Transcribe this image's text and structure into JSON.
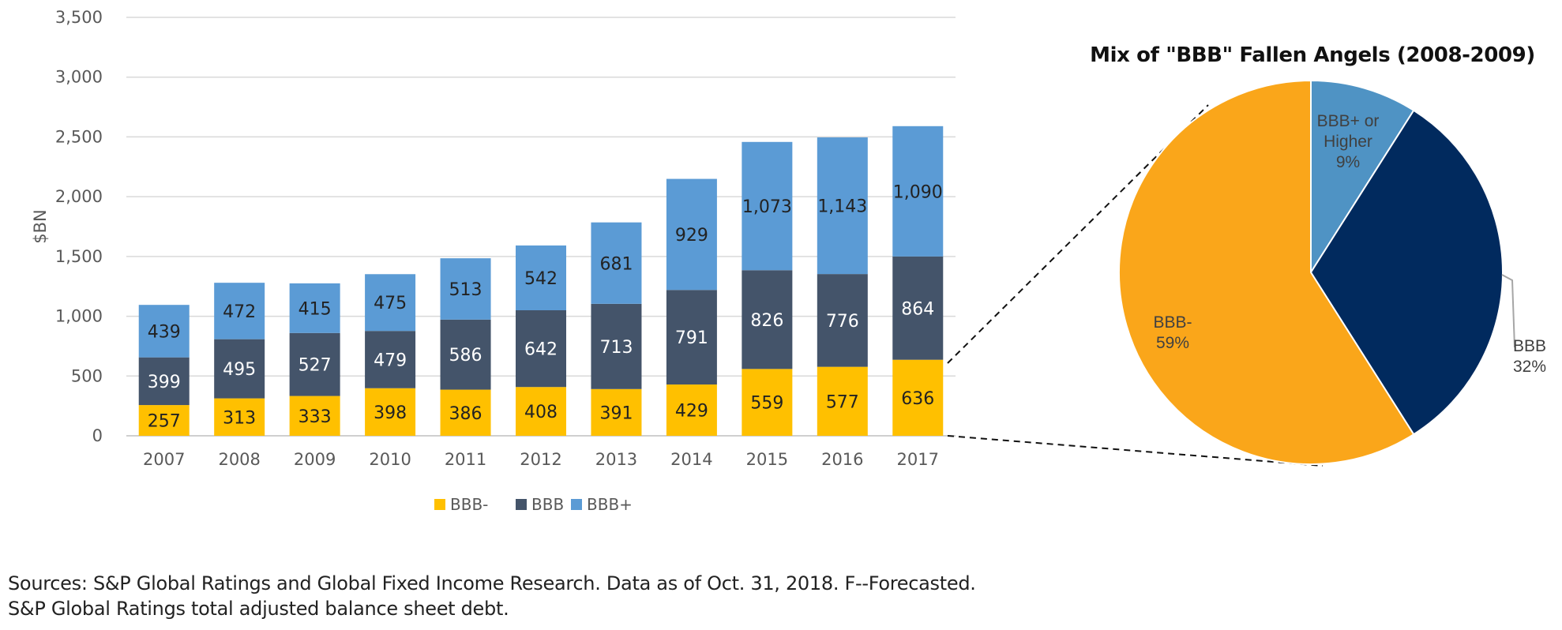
{
  "chart_data": [
    {
      "type": "bar",
      "stacked": true,
      "title": "",
      "xlabel": "",
      "ylabel": "$BN",
      "ylim": [
        0,
        3500
      ],
      "yticks": [
        "0",
        "500",
        "1,000",
        "1,500",
        "2,000",
        "2,500",
        "3,000",
        "3,500"
      ],
      "grid": true,
      "legend_position": "bottom",
      "categories": [
        "2007",
        "2008",
        "2009",
        "2010",
        "2011",
        "2012",
        "2013",
        "2014",
        "2015",
        "2016",
        "2017"
      ],
      "series": [
        {
          "name": "BBB-",
          "color": "#FFC000",
          "values": [
            257,
            313,
            333,
            398,
            386,
            408,
            391,
            429,
            559,
            577,
            636
          ],
          "labels": [
            "257",
            "313",
            "333",
            "398",
            "386",
            "408",
            "391",
            "429",
            "559",
            "577",
            "636"
          ],
          "label_color": "#222222"
        },
        {
          "name": "BBB",
          "color": "#44546A",
          "values": [
            399,
            495,
            527,
            479,
            586,
            642,
            713,
            791,
            826,
            776,
            864
          ],
          "labels": [
            "399",
            "495",
            "527",
            "479",
            "586",
            "642",
            "713",
            "791",
            "826",
            "776",
            "864"
          ],
          "label_color": "#ffffff"
        },
        {
          "name": "BBB+",
          "color": "#5B9BD5",
          "values": [
            439,
            472,
            415,
            475,
            513,
            542,
            681,
            929,
            1073,
            1143,
            1090
          ],
          "labels": [
            "439",
            "472",
            "415",
            "475",
            "513",
            "542",
            "681",
            "929",
            "1,073",
            "1,143",
            "1,090"
          ],
          "label_color": "#222222"
        }
      ]
    },
    {
      "type": "pie",
      "title": "Mix of \"BBB\" Fallen Angels (2008-2009)",
      "slices": [
        {
          "name": "BBB+ or Higher",
          "value": 9,
          "label_lines": [
            "BBB+ or",
            "Higher",
            "9%"
          ],
          "color": "#4F93C4"
        },
        {
          "name": "BBB",
          "value": 32,
          "label_lines": [
            "BBB",
            "32%"
          ],
          "color": "#012A5E"
        },
        {
          "name": "BBB-",
          "value": 59,
          "label_lines": [
            "BBB-",
            "59%"
          ],
          "color": "#FAA61A"
        }
      ]
    }
  ],
  "footer": {
    "line1": "Sources: S&P Global Ratings and Global Fixed Income Research. Data as of Oct. 31, 2018. F--Forecasted.",
    "line2": "S&P Global Ratings total adjusted balance sheet debt."
  }
}
